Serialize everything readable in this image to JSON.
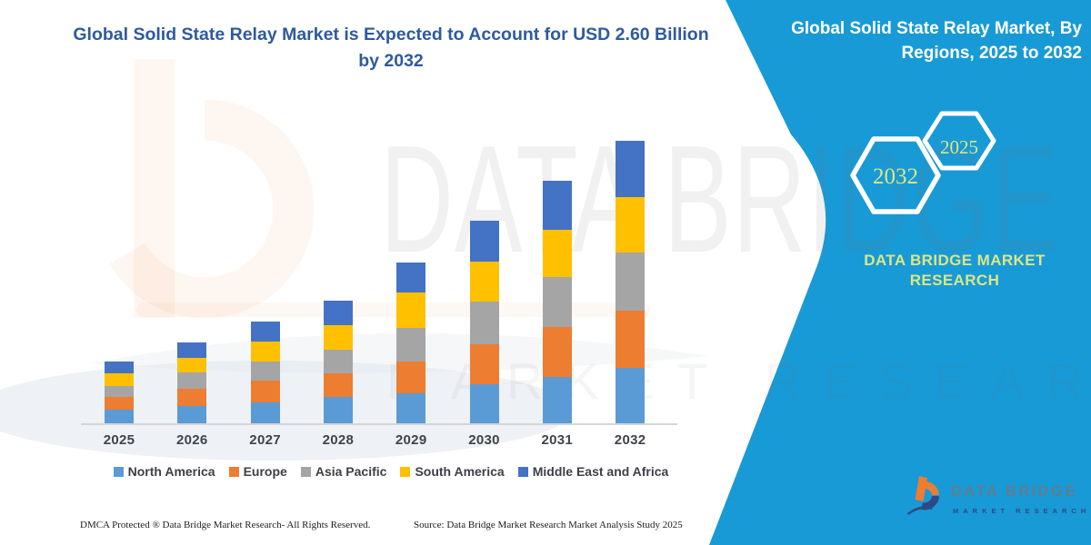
{
  "header": {
    "title_line1": "Global Solid State Relay Market is Expected to Account for USD 2.60 Billion",
    "title_line2": "by 2032"
  },
  "sidebar": {
    "title_line1": "Global Solid State Relay Market, By",
    "title_line2": "Regions, 2025 to 2032",
    "hexagons": [
      {
        "label": "2032"
      },
      {
        "label": "2025"
      }
    ],
    "brand_line1": "DATA BRIDGE MARKET",
    "brand_line2": "RESEARCH",
    "panel_color": "#189AD6",
    "accent_text_color": "#DCE685"
  },
  "chart_data": {
    "type": "bar",
    "stacked": true,
    "unit": "USD Billion",
    "title": "Global Solid State Relay Market, By Regions, 2025 to 2032",
    "categories": [
      "2025",
      "2026",
      "2027",
      "2028",
      "2029",
      "2030",
      "2031",
      "2032"
    ],
    "series": [
      {
        "name": "North America",
        "color": "#5B9BD5",
        "values": [
          0.13,
          0.16,
          0.19,
          0.24,
          0.28,
          0.36,
          0.43,
          0.51
        ]
      },
      {
        "name": "Europe",
        "color": "#ED7D31",
        "values": [
          0.11,
          0.16,
          0.2,
          0.22,
          0.29,
          0.37,
          0.46,
          0.53
        ]
      },
      {
        "name": "Asia Pacific",
        "color": "#A5A5A5",
        "values": [
          0.1,
          0.15,
          0.18,
          0.22,
          0.31,
          0.39,
          0.46,
          0.53
        ]
      },
      {
        "name": "South America",
        "color": "#FFC000",
        "values": [
          0.12,
          0.13,
          0.18,
          0.22,
          0.32,
          0.37,
          0.43,
          0.51
        ]
      },
      {
        "name": "Middle East and Africa",
        "color": "#4472C4",
        "values": [
          0.11,
          0.15,
          0.19,
          0.23,
          0.28,
          0.37,
          0.45,
          0.52
        ]
      }
    ],
    "totals": [
      0.57,
      0.75,
      0.94,
      1.13,
      1.48,
      1.86,
      2.23,
      2.6
    ],
    "ylim": [
      0,
      2.7
    ],
    "grid": false,
    "legend_position": "bottom"
  },
  "footer": {
    "left": "DMCA Protected ® Data Bridge Market Research-  All Rights Reserved.",
    "right": "Source: Data Bridge Market Research  Market Analysis Study 2025"
  },
  "logo": {
    "name": "DATA BRIDGE",
    "subtitle": "MARKET RESEARCH"
  },
  "watermark": {
    "line1": "DATA BRIDGE",
    "line2": "MARKET RESEARCH"
  }
}
